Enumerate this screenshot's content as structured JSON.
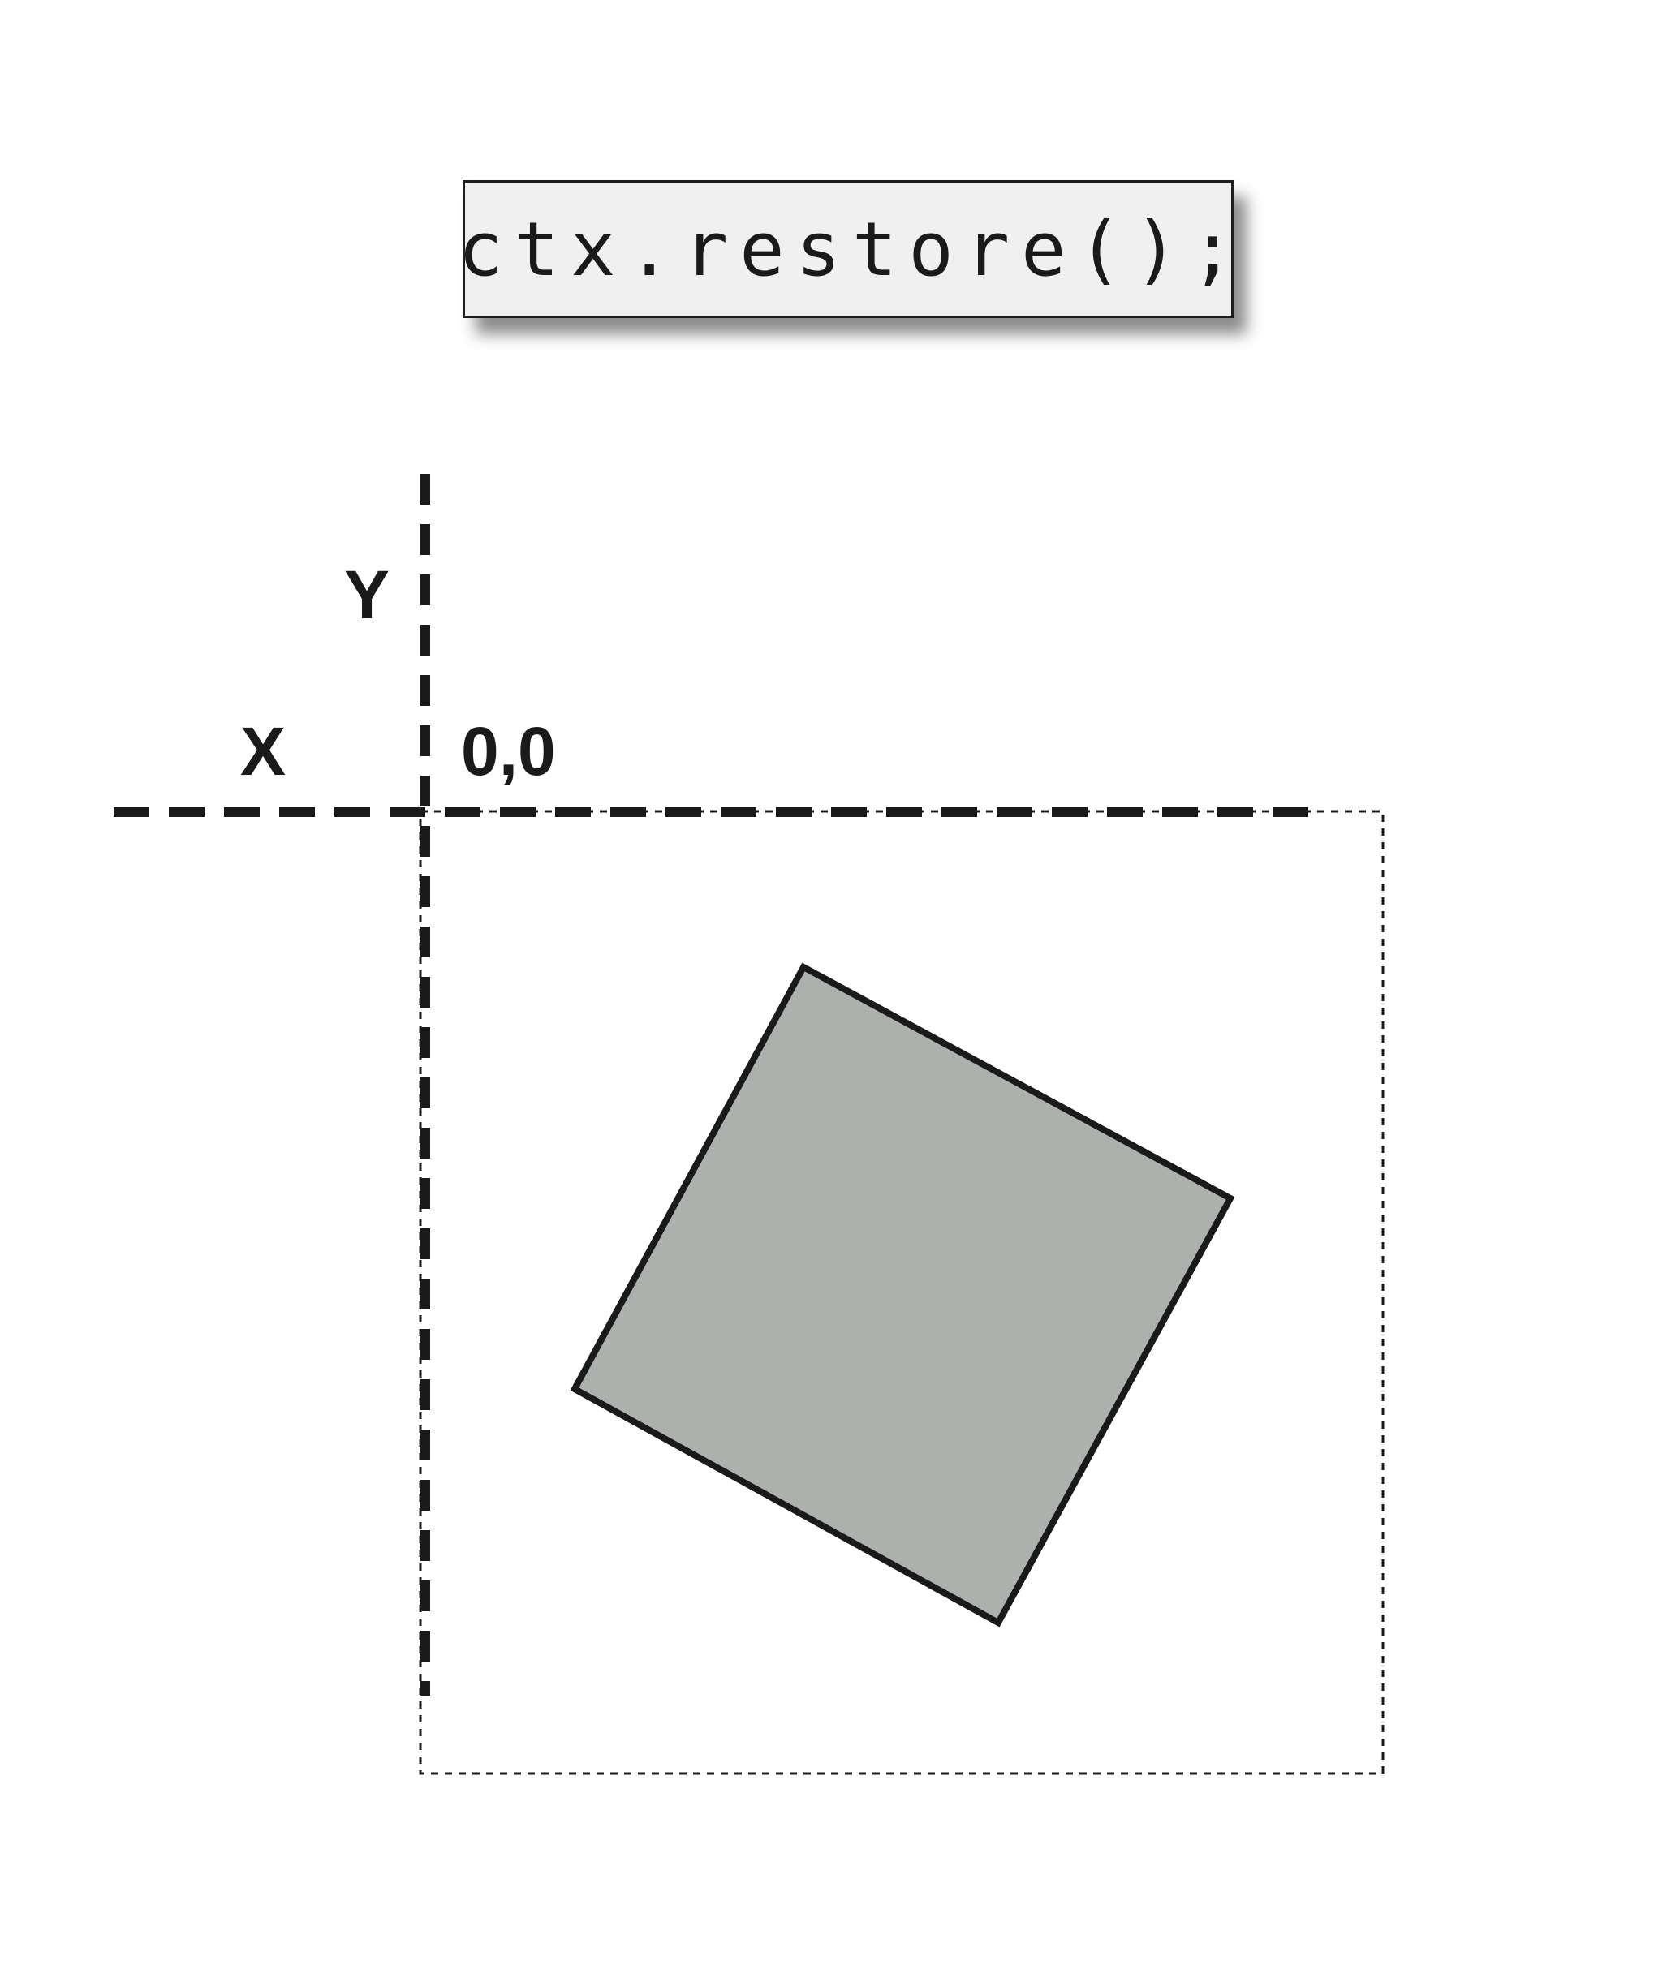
{
  "code_label": "ctx.restore();",
  "labels": {
    "y_axis": "Y",
    "x_axis": "X",
    "origin": "0,0"
  },
  "colors": {
    "square_fill": "#adb1ad",
    "stroke": "#1a1a1a",
    "code_box_fill": "#eff0ef"
  }
}
